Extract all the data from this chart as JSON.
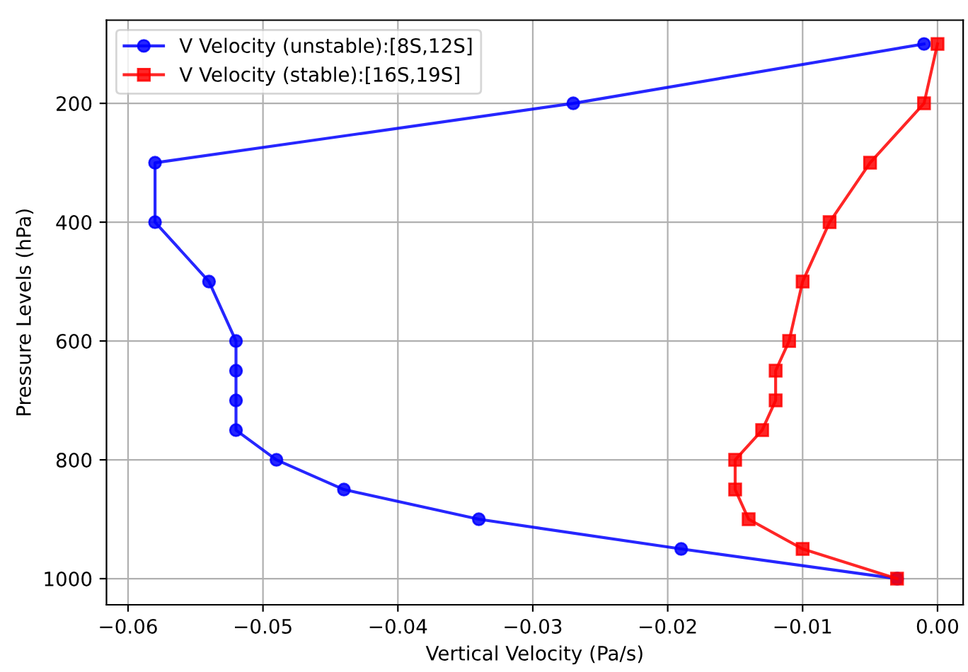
{
  "chart_data": {
    "type": "line",
    "xlabel": "Vertical Velocity (Pa/s)",
    "ylabel": "Pressure Levels (hPa)",
    "xlim": [
      -0.0616,
      0.0019
    ],
    "xticks": [
      {
        "value": -0.06,
        "label": "−0.06"
      },
      {
        "value": -0.05,
        "label": "−0.05"
      },
      {
        "value": -0.04,
        "label": "−0.04"
      },
      {
        "value": -0.03,
        "label": "−0.03"
      },
      {
        "value": -0.02,
        "label": "−0.02"
      },
      {
        "value": -0.01,
        "label": "−0.01"
      },
      {
        "value": 0.0,
        "label": "0.00"
      }
    ],
    "ylim": [
      1044,
      60
    ],
    "yticks": [
      200,
      400,
      600,
      800,
      1000
    ],
    "grid": true,
    "legend": "top left",
    "series": [
      {
        "name": "V Velocity (unstable):[8S,12S]",
        "color": "#0000ff",
        "marker": "circle",
        "x": [
          -0.001,
          -0.027,
          -0.058,
          -0.058,
          -0.054,
          -0.052,
          -0.052,
          -0.052,
          -0.052,
          -0.049,
          -0.044,
          -0.034,
          -0.019,
          -0.003
        ],
        "values": [
          100,
          200,
          300,
          400,
          500,
          600,
          650,
          700,
          750,
          800,
          850,
          900,
          950,
          1000
        ]
      },
      {
        "name": "V Velocity (stable):[16S,19S]",
        "color": "#ff0000",
        "marker": "square",
        "x": [
          0.0,
          -0.001,
          -0.005,
          -0.008,
          -0.01,
          -0.011,
          -0.012,
          -0.012,
          -0.013,
          -0.015,
          -0.015,
          -0.014,
          -0.01,
          -0.003
        ],
        "values": [
          100,
          200,
          300,
          400,
          500,
          600,
          650,
          700,
          750,
          800,
          850,
          900,
          950,
          1000
        ]
      }
    ]
  }
}
